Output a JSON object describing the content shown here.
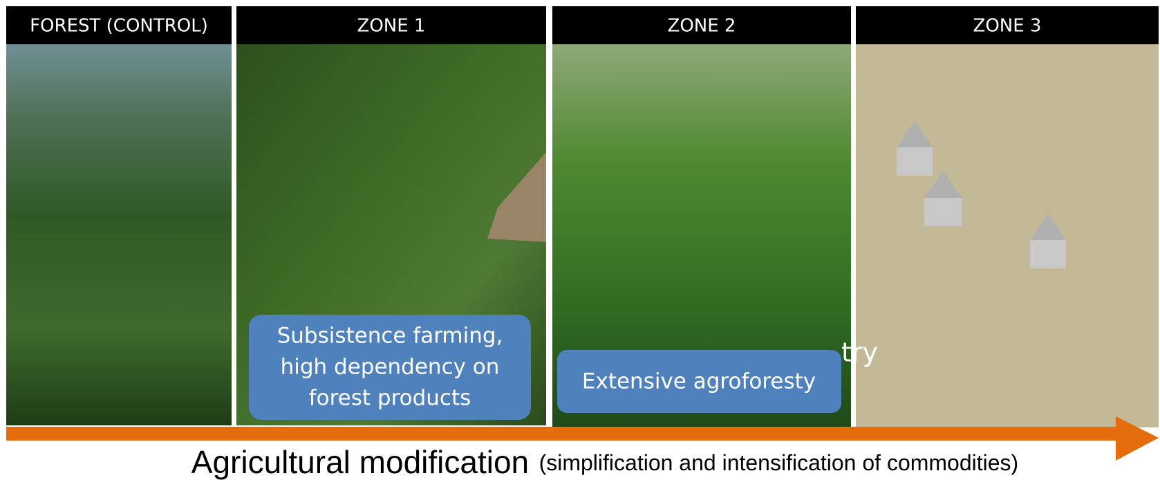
{
  "zones": [
    {
      "header": "FOREST (CONTROL)"
    },
    {
      "header": "ZONE 1",
      "caption": [
        "Subsistence farming,",
        "high dependency on",
        "forest products"
      ]
    },
    {
      "header": "ZONE 2",
      "caption": [
        "Extensive agroforesty"
      ]
    },
    {
      "header": "ZONE 3"
    }
  ],
  "fragment": "try",
  "axis": {
    "label": "Agricultural modification",
    "note": "(simplification and intensification of commodities)"
  }
}
